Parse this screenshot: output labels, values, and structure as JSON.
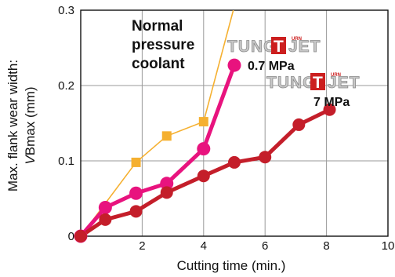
{
  "chart_data": {
    "type": "line",
    "xlabel": "Cutting time (min.)",
    "ylabel_line1": "Max. flank wear width:",
    "ylabel_italic": "V",
    "ylabel_rest": "Bmax (mm)",
    "xlim": [
      0,
      10
    ],
    "ylim": [
      0,
      0.3
    ],
    "x_ticks": [
      2,
      4,
      6,
      8,
      10
    ],
    "x_tick_labels": [
      "2",
      "4",
      "6",
      "8",
      "10"
    ],
    "y_ticks": [
      0,
      0.1,
      0.2,
      0.3
    ],
    "y_tick_labels": [
      "0",
      "0.1",
      "0.2",
      "0.3"
    ],
    "grid": true,
    "series": [
      {
        "color": "#f5b030",
        "marker": "square",
        "x": [
          0,
          1.8,
          2.8,
          4.0,
          5.0
        ],
        "y": [
          0,
          0.098,
          0.133,
          0.152,
          0.305
        ]
      },
      {
        "color": "#e8137e",
        "marker": "circle",
        "x": [
          0,
          0.8,
          1.8,
          2.8,
          4.0,
          5.0
        ],
        "y": [
          0,
          0.038,
          0.057,
          0.07,
          0.116,
          0.227
        ]
      },
      {
        "color": "#c41e2a",
        "marker": "circle",
        "x": [
          0,
          0.8,
          1.8,
          2.8,
          4.0,
          5.0,
          6.0,
          7.1,
          8.1
        ],
        "y": [
          0,
          0.022,
          0.033,
          0.058,
          0.08,
          0.098,
          0.105,
          0.148,
          0.168
        ]
      }
    ],
    "annotations": {
      "normal": [
        "Normal",
        "pressure",
        "coolant"
      ],
      "mpa07": "0.7 MPa",
      "mpa7": "7 MPa"
    },
    "logo": {
      "brand_left": "TUNG",
      "brand_t": "T",
      "brand_right": "JET",
      "superscript": "URN"
    }
  }
}
